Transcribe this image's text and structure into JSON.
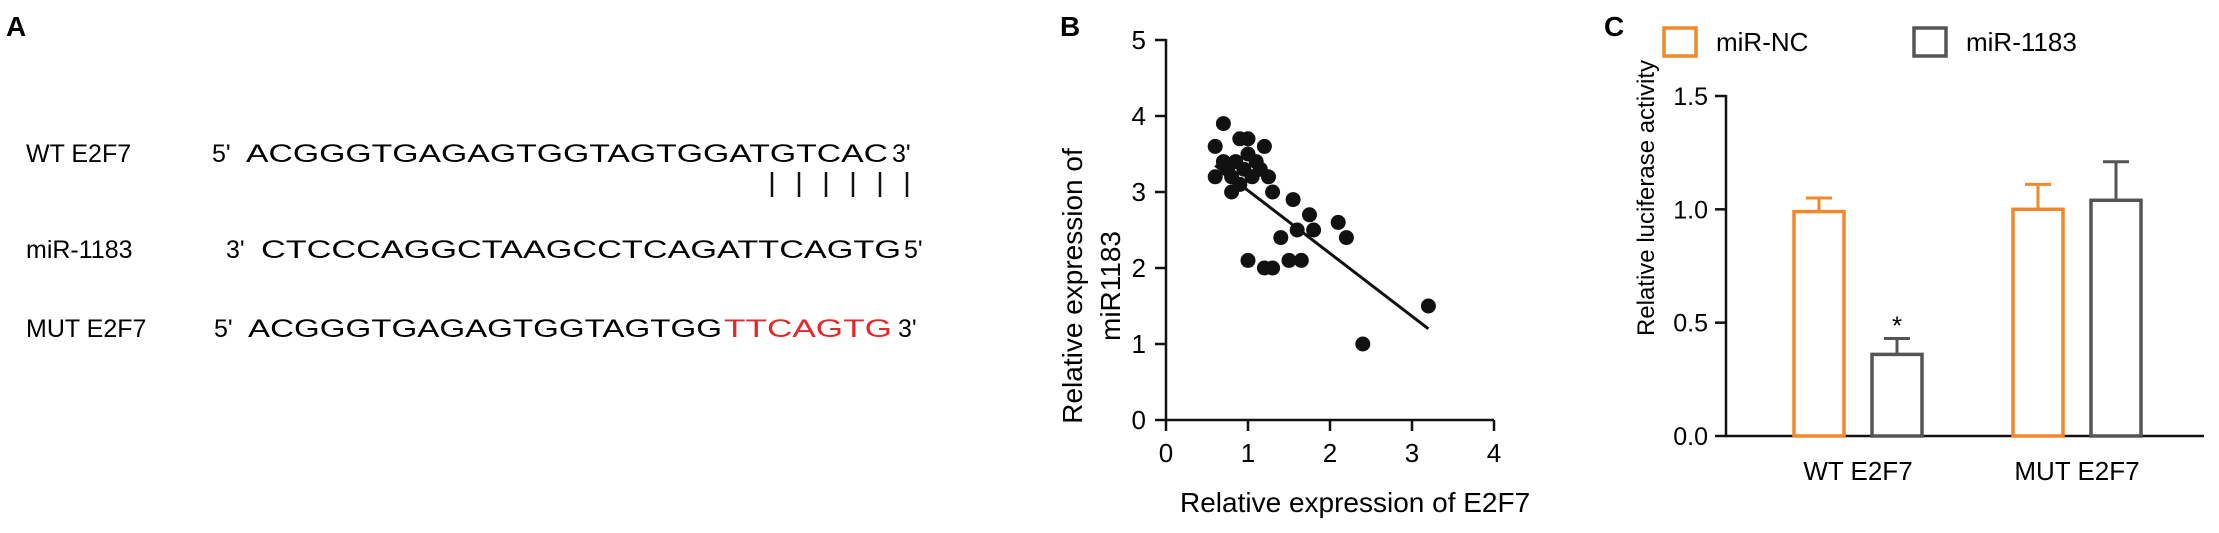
{
  "panel_a": {
    "letter": "A",
    "rows": [
      {
        "label": "WT E2F7",
        "prefix": "5'",
        "parts": [
          {
            "text": "ACGGGTGAGAGTGGTAGTGGATGTCAC",
            "color": "#111111"
          }
        ],
        "suffix": "3'"
      },
      {
        "label": "miR-1183",
        "prefix": "3'",
        "parts": [
          {
            "text": "CTCCCAGGCTAAGCCTCAGATTCAGTG",
            "color": "#111111"
          }
        ],
        "suffix": "5'"
      },
      {
        "label": "MUT E2F7",
        "prefix": "5'",
        "parts": [
          {
            "text": "ACGGGTGAGAGTGGTAGTGG",
            "color": "#111111"
          },
          {
            "text": "TTCAGTG",
            "color": "#e5262b"
          }
        ],
        "suffix": "3'"
      }
    ],
    "pair_count": 6
  },
  "chart_data": [
    {
      "panel": "B",
      "type": "scatter",
      "xlabel": "Relative expression of E2F7",
      "ylabel": "Relative expression of miR1183",
      "ylabel_lines": [
        "Relative expression of",
        "miR1183"
      ],
      "xlim": [
        0,
        4
      ],
      "ylim": [
        0,
        5
      ],
      "xticks": [
        0,
        1,
        2,
        3,
        4
      ],
      "yticks": [
        0,
        1,
        2,
        3,
        4,
        5
      ],
      "points": [
        [
          0.6,
          3.6
        ],
        [
          0.6,
          3.2
        ],
        [
          0.7,
          3.9
        ],
        [
          0.7,
          3.4
        ],
        [
          0.75,
          3.3
        ],
        [
          0.8,
          3.0
        ],
        [
          0.8,
          3.2
        ],
        [
          0.85,
          3.4
        ],
        [
          0.9,
          3.7
        ],
        [
          0.9,
          3.1
        ],
        [
          0.95,
          3.3
        ],
        [
          1.0,
          3.7
        ],
        [
          1.0,
          3.5
        ],
        [
          1.05,
          3.2
        ],
        [
          1.1,
          3.4
        ],
        [
          1.15,
          3.3
        ],
        [
          1.2,
          3.6
        ],
        [
          1.25,
          3.2
        ],
        [
          1.3,
          3.0
        ],
        [
          1.0,
          2.1
        ],
        [
          1.2,
          2.0
        ],
        [
          1.3,
          2.0
        ],
        [
          1.4,
          2.4
        ],
        [
          1.5,
          2.1
        ],
        [
          1.55,
          2.9
        ],
        [
          1.6,
          2.5
        ],
        [
          1.65,
          2.1
        ],
        [
          1.75,
          2.7
        ],
        [
          1.8,
          2.5
        ],
        [
          2.1,
          2.6
        ],
        [
          2.2,
          2.4
        ],
        [
          2.4,
          1.0
        ],
        [
          3.2,
          1.5
        ]
      ],
      "fit_line": {
        "x": [
          0.6,
          3.2
        ],
        "y": [
          3.35,
          1.2
        ]
      }
    },
    {
      "panel": "C",
      "type": "bar",
      "ylabel": "Relative luciferase activity",
      "ylim": [
        0,
        1.5
      ],
      "yticks": [
        "0.0",
        "0.5",
        "1.0",
        "1.5"
      ],
      "categories": [
        "WT E2F7",
        "MUT E2F7"
      ],
      "series": [
        {
          "name": "miR-NC",
          "color": "#f0892b",
          "values": [
            0.99,
            1.0
          ],
          "errors": [
            0.06,
            0.11
          ]
        },
        {
          "name": "miR-1183",
          "color": "#555555",
          "values": [
            0.36,
            1.04
          ],
          "errors": [
            0.07,
            0.17
          ]
        }
      ],
      "annotations": [
        {
          "category": "WT E2F7",
          "series": "miR-1183",
          "text": "*"
        }
      ],
      "legend_position": "top"
    }
  ]
}
